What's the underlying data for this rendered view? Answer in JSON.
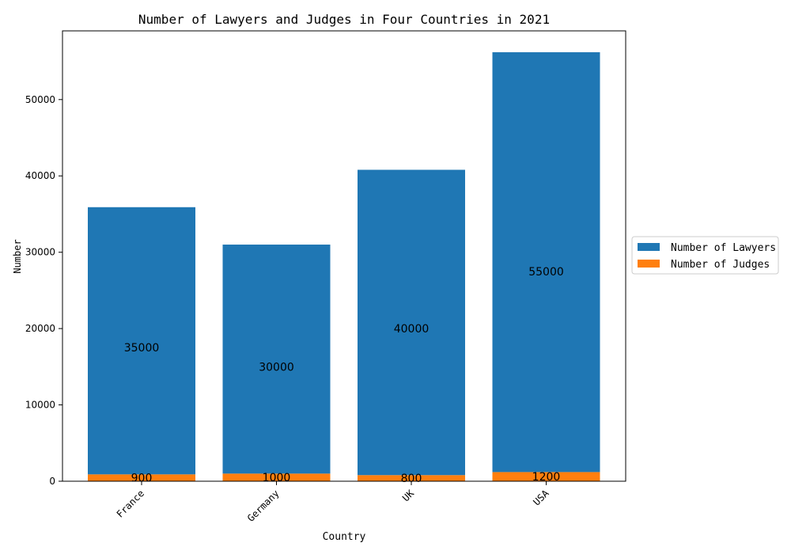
{
  "chart_data": {
    "type": "bar",
    "stacked": true,
    "title": "Number of Lawyers and Judges in Four Countries in 2021",
    "xlabel": "Country",
    "ylabel": "Number",
    "categories": [
      "France",
      "Germany",
      "UK",
      "USA"
    ],
    "series": [
      {
        "name": "Number of Judges",
        "color": "#ff7f0e",
        "values": [
          900,
          1000,
          800,
          1200
        ],
        "labels": [
          "900",
          "1000",
          "800",
          "1200"
        ]
      },
      {
        "name": "Number of Lawyers",
        "color": "#1f77b4",
        "values": [
          35000,
          30000,
          40000,
          55000
        ],
        "labels": [
          "35000",
          "30000",
          "40000",
          "55000"
        ]
      }
    ],
    "ylim": [
      0,
      59000
    ],
    "yticks": [
      0,
      10000,
      20000,
      30000,
      40000,
      50000
    ],
    "ytick_labels": [
      "0",
      "10000",
      "20000",
      "30000",
      "40000",
      "50000"
    ],
    "grid": false,
    "legend": {
      "placement": "outside-right",
      "entries": [
        {
          "label": "Number of Lawyers",
          "color": "#1f77b4"
        },
        {
          "label": "Number of Judges",
          "color": "#ff7f0e"
        }
      ]
    }
  }
}
